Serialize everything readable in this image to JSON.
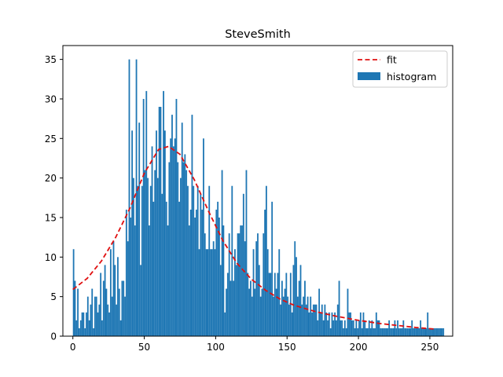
{
  "chart_data": {
    "type": "bar",
    "title": "SteveSmith",
    "xlabel": "",
    "ylabel": "",
    "xlim": [
      -7,
      266
    ],
    "ylim": [
      0,
      36.75
    ],
    "x_ticks": [
      0,
      50,
      100,
      150,
      200,
      250
    ],
    "y_ticks": [
      0,
      5,
      10,
      15,
      20,
      25,
      30,
      35
    ],
    "legend_position": "top-right",
    "colors": {
      "histogram": "#1f77b4",
      "fit": "#e01010"
    },
    "series": [
      {
        "name": "histogram",
        "kind": "bar",
        "bin_width": 1,
        "x_start": 0,
        "values": [
          11,
          7,
          2,
          6,
          1,
          2,
          3,
          3,
          1,
          3,
          5,
          2,
          4,
          6,
          1,
          5,
          5,
          3,
          4,
          8,
          2,
          7,
          9,
          6,
          4,
          3,
          11,
          5,
          12,
          9,
          4,
          10,
          6,
          2,
          7,
          7,
          5,
          16,
          12,
          35,
          15,
          26,
          20,
          14,
          35,
          19,
          27,
          9,
          19,
          30,
          21,
          31,
          20,
          14,
          19,
          24,
          17,
          21,
          26,
          20,
          29,
          29,
          18,
          31,
          26,
          17,
          14,
          22,
          25,
          28,
          24,
          25,
          30,
          22,
          17,
          20,
          27,
          22,
          23,
          21,
          19,
          14,
          16,
          28,
          19,
          15,
          16,
          19,
          11,
          18,
          16,
          25,
          13,
          11,
          11,
          19,
          11,
          11,
          12,
          11,
          16,
          17,
          15,
          9,
          21,
          14,
          3,
          6,
          8,
          13,
          7,
          19,
          7,
          11,
          9,
          13,
          13,
          14,
          14,
          18,
          12,
          21,
          8,
          6,
          7,
          5,
          11,
          6,
          12,
          13,
          9,
          5,
          6,
          13,
          16,
          19,
          11,
          8,
          8,
          17,
          5,
          8,
          6,
          8,
          11,
          4,
          7,
          5,
          6,
          8,
          5,
          4,
          8,
          3,
          9,
          12,
          10,
          5,
          7,
          9,
          4,
          5,
          7,
          4,
          5,
          3,
          5,
          3,
          4,
          4,
          4,
          2,
          6,
          3,
          4,
          2,
          4,
          3,
          2,
          3,
          1,
          3,
          2,
          3,
          2,
          4,
          7,
          2,
          2,
          1,
          2,
          1,
          6,
          3,
          3,
          2,
          2,
          1,
          2,
          1,
          2,
          3,
          1,
          3,
          2,
          1,
          1,
          2,
          1,
          2,
          1,
          1,
          3,
          2,
          2,
          1,
          1,
          1,
          1,
          1,
          1,
          2,
          1,
          1,
          1,
          2,
          1,
          2,
          1,
          1,
          1,
          2,
          1,
          1,
          1,
          1,
          1,
          2,
          1,
          1,
          1,
          1,
          1,
          2,
          1,
          1,
          1,
          1,
          3,
          1,
          1,
          1,
          1,
          1,
          1,
          1,
          1,
          1,
          1,
          1
        ]
      },
      {
        "name": "fit",
        "kind": "line",
        "style": "dashed",
        "x": [
          0,
          10,
          20,
          30,
          40,
          50,
          60,
          67,
          75,
          85,
          95,
          105,
          115,
          125,
          135,
          145,
          155,
          170,
          185,
          200,
          215,
          230,
          240,
          253
        ],
        "values": [
          5.9,
          7.3,
          9.5,
          12.5,
          16.2,
          20.6,
          23.6,
          24.0,
          23.0,
          19.8,
          15.8,
          12.1,
          9.2,
          7.2,
          5.8,
          4.7,
          3.9,
          3.1,
          2.5,
          2.0,
          1.6,
          1.3,
          1.1,
          0.9
        ]
      }
    ]
  }
}
